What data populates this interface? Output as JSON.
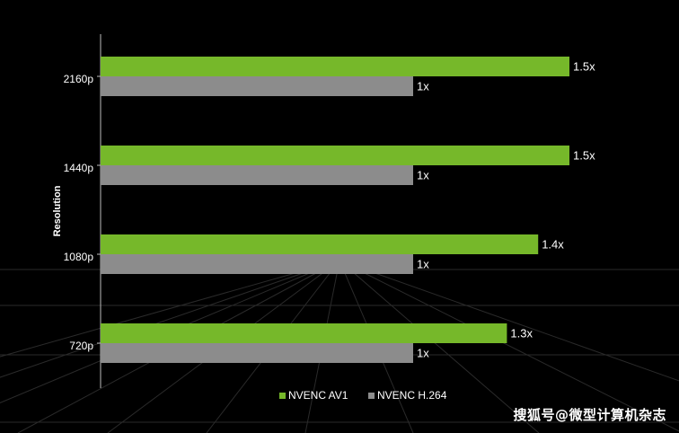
{
  "chart_data": {
    "type": "bar",
    "orientation": "horizontal",
    "categories": [
      "2160p",
      "1440p",
      "1080p",
      "720p"
    ],
    "series": [
      {
        "name": "NVENC AV1",
        "color": "#76b82a",
        "values": [
          1.5,
          1.5,
          1.4,
          1.3
        ],
        "labels": [
          "1.5x",
          "1.5x",
          "1.4x",
          "1.3x"
        ]
      },
      {
        "name": "NVENC H.264",
        "color": "#8c8c8c",
        "values": [
          1,
          1,
          1,
          1
        ],
        "labels": [
          "1x",
          "1x",
          "1x",
          "1x"
        ]
      }
    ],
    "ylabel": "Resolution",
    "xlim": [
      0,
      2.0
    ],
    "grid": false,
    "legend_position": "bottom"
  },
  "watermark": "搜狐号@微型计算机杂志"
}
